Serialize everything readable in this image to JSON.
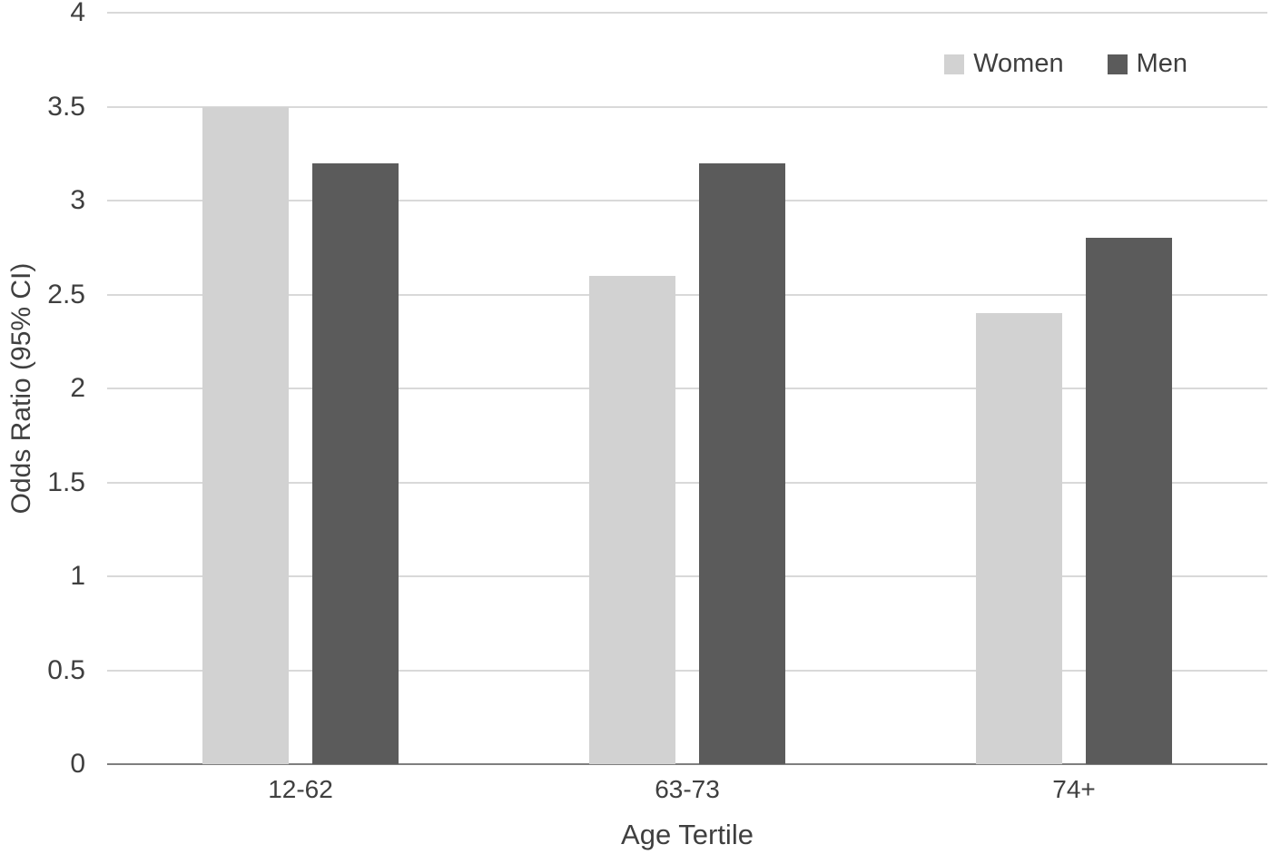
{
  "chart_data": {
    "type": "bar",
    "title": "",
    "xlabel": "Age Tertile",
    "ylabel": "Odds Ratio (95% CI)",
    "categories": [
      "12-62",
      "63-73",
      "74+"
    ],
    "series": [
      {
        "name": "Women",
        "color": "#d2d2d2",
        "values": [
          3.5,
          2.6,
          2.4
        ]
      },
      {
        "name": "Men",
        "color": "#5b5b5b",
        "values": [
          3.2,
          3.2,
          2.8
        ]
      }
    ],
    "ylim": [
      0,
      4
    ],
    "yticks": [
      "0",
      "0.5",
      "1",
      "1.5",
      "2",
      "2.5",
      "3",
      "3.5",
      "4"
    ],
    "grid": "horizontal",
    "legend_position": "top-right"
  },
  "colors": {
    "gridline": "#d9d9d9",
    "axis_line": "#7f7f7f",
    "text": "#3f3f3f",
    "background": "#ffffff"
  }
}
